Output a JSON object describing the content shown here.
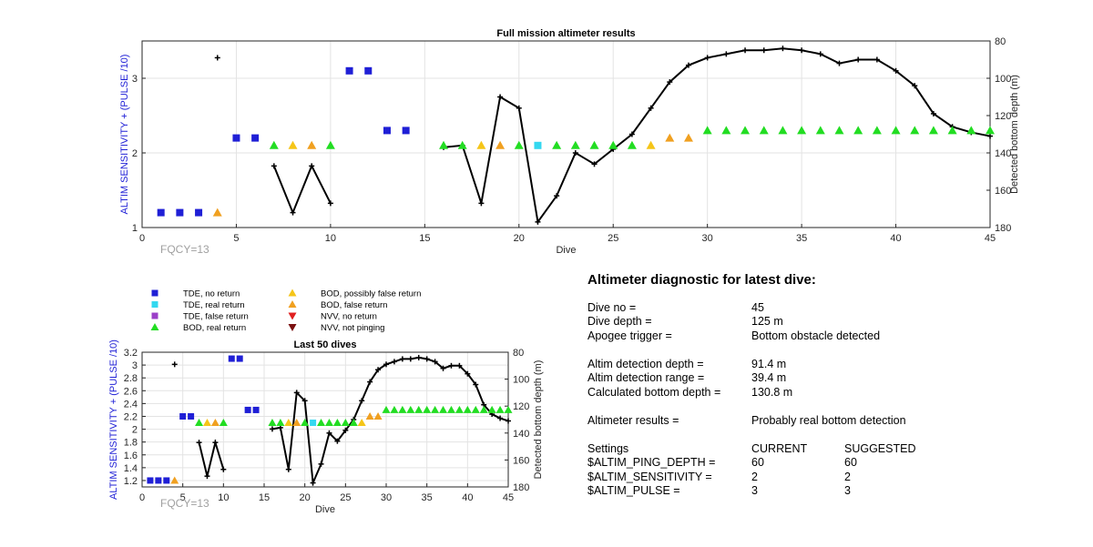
{
  "chart_data": [
    {
      "type": "scatter",
      "title": "Full mission altimeter results",
      "xlabel": "Dive",
      "ylabel_left": "ALTIM SENSITIVITY + (PULSE /10)",
      "ylabel_right": "Detected bottom depth (m)",
      "xlim": [
        0,
        45
      ],
      "ylim_left": [
        1,
        3.5
      ],
      "ylim_right": [
        80,
        180
      ],
      "right_axis_reversed": true,
      "xticks": [
        0,
        5,
        10,
        15,
        20,
        25,
        30,
        35,
        40,
        45
      ],
      "yticks_left": [
        1,
        2,
        3
      ],
      "yticks_right": [
        80,
        100,
        120,
        140,
        160,
        180
      ],
      "grid": true,
      "annotation": "FQCY=13"
    },
    {
      "type": "scatter",
      "title": "Last 50 dives",
      "xlabel": "Dive",
      "ylabel_left": "ALTIM SENSITIVITY + (PULSE /10)",
      "ylabel_right": "Detected bottom depth (m)",
      "xlim": [
        0,
        45
      ],
      "ylim_left": [
        1.1,
        3.2
      ],
      "ylim_right": [
        80,
        180
      ],
      "right_axis_reversed": true,
      "xticks": [
        0,
        5,
        10,
        15,
        20,
        25,
        30,
        35,
        40,
        45
      ],
      "yticks_left": [
        1.2,
        1.4,
        1.6,
        1.8,
        2,
        2.2,
        2.4,
        2.6,
        2.8,
        3,
        3.2
      ],
      "yticks_right": [
        80,
        100,
        120,
        140,
        160,
        180
      ],
      "grid": true,
      "annotation": "FQCY=13"
    }
  ],
  "series": {
    "tde_no_return": {
      "name": "TDE, no return",
      "color": "#1f1fd6",
      "marker": "square",
      "x": [
        1,
        2,
        3,
        5,
        6,
        11,
        12,
        13,
        14
      ],
      "y": [
        1.2,
        1.2,
        1.2,
        2.2,
        2.2,
        3.1,
        3.1,
        2.3,
        2.3
      ]
    },
    "tde_real_return": {
      "name": "TDE, real return",
      "color": "#33d8f0",
      "marker": "square",
      "x": [
        21
      ],
      "y": [
        2.1
      ]
    },
    "tde_false_return": {
      "name": "TDE, false return",
      "color": "#9b40c8",
      "marker": "square",
      "x": [],
      "y": []
    },
    "bod_real_return": {
      "name": "BOD, real return",
      "color": "#22dd22",
      "marker": "triangle-up",
      "x": [
        7,
        10,
        16,
        17,
        20,
        22,
        23,
        24,
        25,
        26,
        30,
        31,
        32,
        33,
        34,
        35,
        36,
        37,
        38,
        39,
        40,
        41,
        42,
        43,
        44,
        45
      ],
      "y": [
        2.1,
        2.1,
        2.1,
        2.1,
        2.1,
        2.1,
        2.1,
        2.1,
        2.1,
        2.1,
        2.3,
        2.3,
        2.3,
        2.3,
        2.3,
        2.3,
        2.3,
        2.3,
        2.3,
        2.3,
        2.3,
        2.3,
        2.3,
        2.3,
        2.3,
        2.3
      ]
    },
    "bod_possibly_false": {
      "name": "BOD, possibly false return",
      "color": "#f5c518",
      "marker": "triangle-up",
      "x": [
        8,
        18,
        27
      ],
      "y": [
        2.1,
        2.1,
        2.1
      ]
    },
    "bod_false_return": {
      "name": "BOD, false return",
      "color": "#f0a020",
      "marker": "triangle-up",
      "x": [
        4,
        9,
        19,
        28,
        29
      ],
      "y": [
        1.2,
        2.1,
        2.1,
        2.2,
        2.2
      ]
    },
    "nvv_no_return": {
      "name": "NVV, no return",
      "color": "#e02020",
      "marker": "triangle-down",
      "x": [],
      "y": []
    },
    "nvv_not_pinging": {
      "name": "NVV, not pinging",
      "color": "#7a1010",
      "marker": "triangle-down",
      "x": [],
      "y": []
    },
    "depth": {
      "color": "#000000",
      "marker": "plus",
      "axis": "right",
      "segments": [
        {
          "x": [
            4
          ],
          "y": [
            89
          ]
        },
        {
          "x": [
            7,
            8,
            9,
            10
          ],
          "y": [
            147,
            172,
            147,
            167
          ]
        },
        {
          "x": [
            16,
            17,
            18,
            19,
            20,
            21,
            22,
            23,
            24,
            25,
            26,
            27,
            28,
            29,
            30,
            31,
            32,
            33,
            34,
            35,
            36,
            37,
            38,
            39,
            40,
            41,
            42,
            43,
            44,
            45
          ],
          "y": [
            137,
            136,
            167,
            110,
            116,
            177,
            163,
            140,
            146,
            138,
            130,
            116,
            102,
            93,
            89,
            87,
            85,
            85,
            84,
            85,
            87,
            92,
            90,
            90,
            96,
            104,
            119,
            126,
            129,
            131
          ]
        }
      ]
    }
  },
  "legend_order": [
    "tde_no_return",
    "tde_real_return",
    "tde_false_return",
    "bod_real_return",
    "bod_possibly_false",
    "bod_false_return",
    "nvv_no_return",
    "nvv_not_pinging"
  ],
  "diagnostic": {
    "title": "Altimeter diagnostic for latest dive:",
    "dive_no_label": "Dive no =",
    "dive_no": "45",
    "dive_depth_label": "Dive depth =",
    "dive_depth": "125 m",
    "apogee_label": "Apogee trigger =",
    "apogee": "Bottom obstacle detected",
    "det_depth_label": "Altim detection depth =",
    "det_depth": "91.4 m",
    "det_range_label": "Altim detection range =",
    "det_range": "39.4 m",
    "calc_depth_label": "Calculated bottom depth =",
    "calc_depth": "130.8 m",
    "results_label": "Altimeter results =",
    "results": "Probably real bottom detection",
    "settings_label": "Settings",
    "current_label": "CURRENT",
    "suggested_label": "SUGGESTED",
    "ping_depth_label": "$ALTIM_PING_DEPTH =",
    "ping_depth_current": "60",
    "ping_depth_suggested": "60",
    "sensitivity_label": "$ALTIM_SENSITIVITY =",
    "sensitivity_current": "2",
    "sensitivity_suggested": "2",
    "pulse_label": "$ALTIM_PULSE =",
    "pulse_current": "3",
    "pulse_suggested": "3"
  }
}
